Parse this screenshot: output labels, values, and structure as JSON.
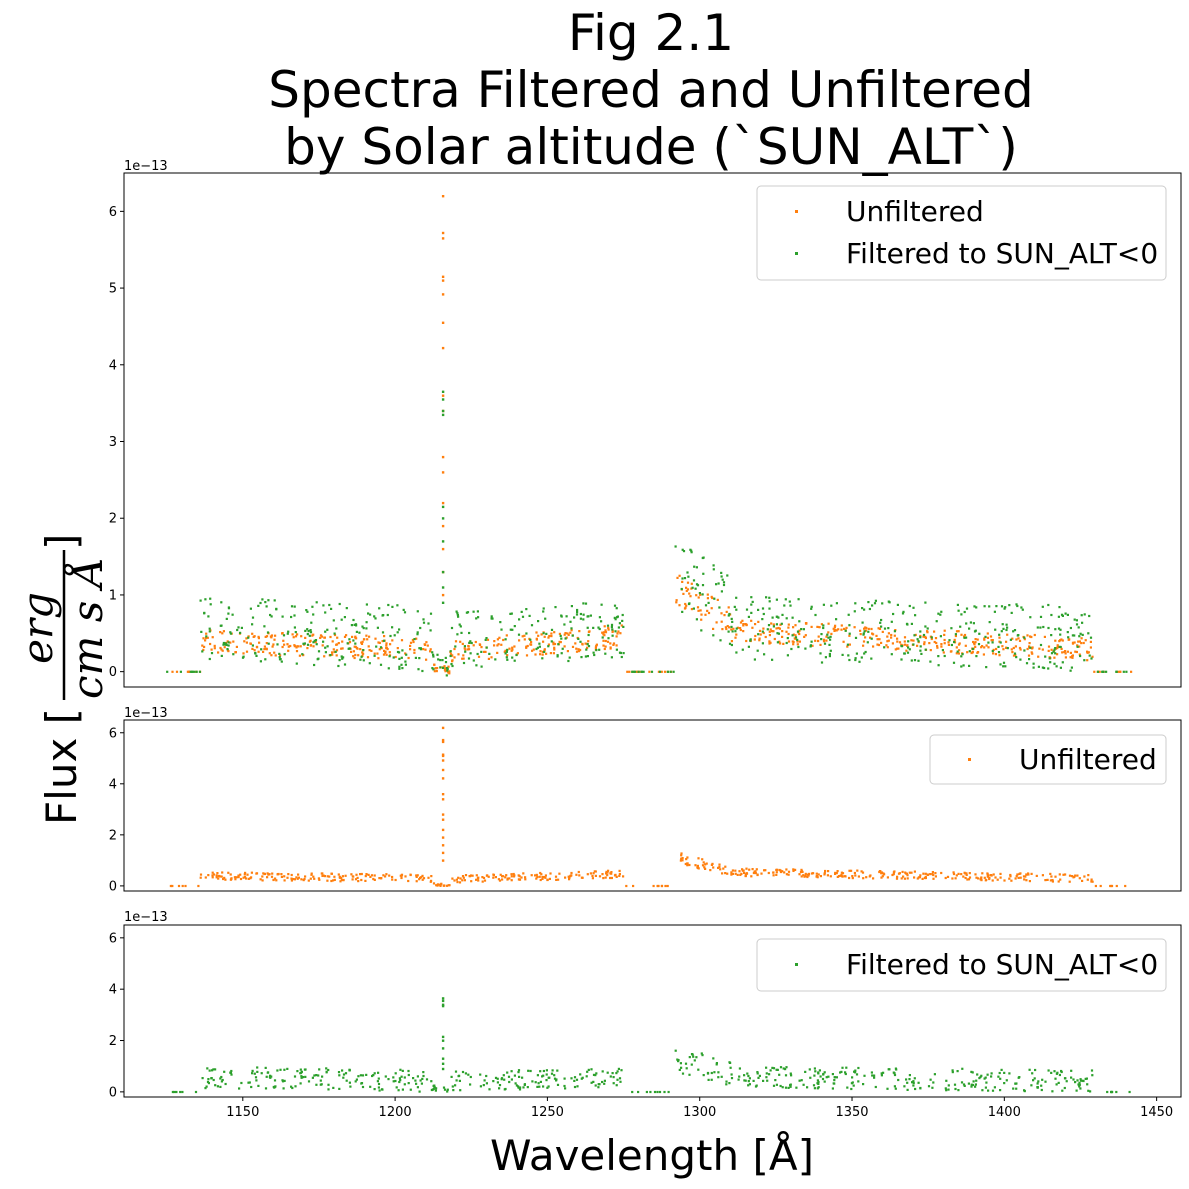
{
  "figure": {
    "title_lines": [
      "Fig 2.1",
      "Spectra Filtered and Unfiltered",
      "by Solar altitude (`SUN_ALT`)"
    ],
    "xlabel": "Wavelength [Å]",
    "ylabel_prefix": "Flux [",
    "ylabel_numerator": "erg",
    "ylabel_denominator": "cm s Å",
    "ylabel_suffix": "]",
    "offset_text": "1e−13"
  },
  "colors": {
    "unfiltered": "#ff7f0e",
    "filtered": "#2ca02c",
    "axis": "#000000"
  },
  "chart_data": [
    {
      "type": "scatter",
      "panel": "combined",
      "series": [
        {
          "name": "Unfiltered",
          "color": "#ff7f0e",
          "bands": [
            {
              "x": [
                1125,
                1136
              ],
              "y": [
                0,
                0
              ],
              "spread": 0.0
            },
            {
              "x": [
                1136,
                1212
              ],
              "y": [
                0.35,
                0.25
              ],
              "spread": 0.3
            },
            {
              "x": [
                1212,
                1218
              ],
              "y": [
                0.05,
                0.0
              ],
              "spread": 0.1
            },
            {
              "x": [
                1218,
                1275
              ],
              "y": [
                0.22,
                0.42
              ],
              "spread": 0.3
            },
            {
              "x": [
                1275,
                1292
              ],
              "y": [
                0,
                0
              ],
              "spread": 0.0
            },
            {
              "x": [
                1292,
                1310
              ],
              "y": [
                1.05,
                0.55
              ],
              "spread": 0.45
            },
            {
              "x": [
                1310,
                1429
              ],
              "y": [
                0.5,
                0.25
              ],
              "spread": 0.3
            },
            {
              "x": [
                1429,
                1442
              ],
              "y": [
                0,
                0
              ],
              "spread": 0.0
            }
          ],
          "spike": {
            "x": 1215.7,
            "values": [
              6.2,
              5.72,
              5.65,
              5.15,
              5.1,
              4.92,
              4.55,
              4.22,
              3.6,
              3.4,
              2.8,
              2.6,
              2.2,
              1.9,
              1.6,
              1.3,
              1.0
            ]
          }
        },
        {
          "name": "Filtered to SUN_ALT<0",
          "color": "#2ca02c",
          "bands": [
            {
              "x": [
                1125,
                1136
              ],
              "y": [
                0,
                0
              ],
              "spread": 0.0
            },
            {
              "x": [
                1136,
                1212
              ],
              "y": [
                0.45,
                0.3
              ],
              "spread": 0.85
            },
            {
              "x": [
                1212,
                1218
              ],
              "y": [
                0.1,
                0.0
              ],
              "spread": 0.25
            },
            {
              "x": [
                1218,
                1275
              ],
              "y": [
                0.3,
                0.45
              ],
              "spread": 0.75
            },
            {
              "x": [
                1275,
                1292
              ],
              "y": [
                0,
                0
              ],
              "spread": 0.0
            },
            {
              "x": [
                1292,
                1310
              ],
              "y": [
                1.1,
                0.6
              ],
              "spread": 1.0
            },
            {
              "x": [
                1310,
                1429
              ],
              "y": [
                0.45,
                0.3
              ],
              "spread": 0.85
            },
            {
              "x": [
                1429,
                1442
              ],
              "y": [
                0,
                0
              ],
              "spread": 0.0
            }
          ],
          "spike": {
            "x": 1215.7,
            "values": [
              3.65,
              3.55,
              3.4,
              3.35,
              2.15,
              2.0,
              1.7,
              1.3,
              1.1,
              0.9
            ]
          }
        }
      ],
      "xlim": [
        1111,
        1458
      ],
      "ylim": [
        -0.2,
        6.5
      ],
      "yticks": [
        0,
        1,
        2,
        3,
        4,
        5,
        6
      ],
      "ytick_labels": [
        "0",
        "1",
        "2",
        "3",
        "4",
        "5",
        "6"
      ],
      "y_scale_note": "1e−13",
      "legend": {
        "location": "upper right",
        "entries": [
          "Unfiltered",
          "Filtered to SUN_ALT<0"
        ]
      }
    },
    {
      "type": "scatter",
      "panel": "unfiltered",
      "series_ref": "Unfiltered",
      "xlim": [
        1111,
        1458
      ],
      "ylim": [
        -0.2,
        6.5
      ],
      "yticks": [
        0,
        2,
        4,
        6
      ],
      "ytick_labels": [
        "0",
        "2",
        "4",
        "6"
      ],
      "y_scale_note": "1e−13",
      "legend": {
        "location": "upper right",
        "entries": [
          "Unfiltered"
        ]
      }
    },
    {
      "type": "scatter",
      "panel": "filtered",
      "series_ref": "Filtered to SUN_ALT<0",
      "xlim": [
        1111,
        1458
      ],
      "ylim": [
        -0.2,
        6.5
      ],
      "yticks": [
        0,
        2,
        4,
        6
      ],
      "ytick_labels": [
        "0",
        "2",
        "4",
        "6"
      ],
      "xticks": [
        1150,
        1200,
        1250,
        1300,
        1350,
        1400,
        1450
      ],
      "xtick_labels": [
        "1150",
        "1200",
        "1250",
        "1300",
        "1350",
        "1400",
        "1450"
      ],
      "y_scale_note": "1e−13",
      "legend": {
        "location": "upper right",
        "entries": [
          "Filtered to SUN_ALT<0"
        ]
      }
    }
  ]
}
